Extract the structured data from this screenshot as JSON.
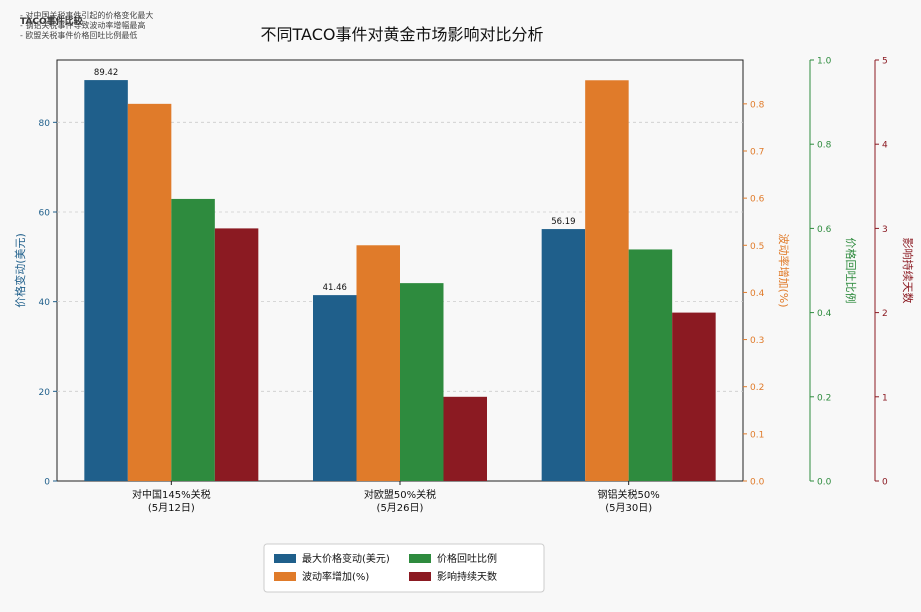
{
  "notes": {
    "title": "TACO事件比较",
    "lines": [
      "- 对中国关税事件引起的价格变化最大",
      "- 钢铝关税事件导致波动率增幅最高",
      "- 欧盟关税事件价格回吐比例最低"
    ]
  },
  "chart_data": {
    "type": "bar",
    "title": "不同TACO事件对黄金市场影响对比分析",
    "categories": [
      [
        "对中国145%关税",
        "(5月12日)"
      ],
      [
        "对欧盟50%关税",
        "(5月26日)"
      ],
      [
        "钢铝关税50%",
        "(5月30日)"
      ]
    ],
    "series": [
      {
        "name": "最大价格变动(美元)",
        "axis": "y1",
        "color": "#1f5f8b",
        "values": [
          89.42,
          41.46,
          56.19
        ],
        "labels": [
          "89.42",
          "41.46",
          "56.19"
        ]
      },
      {
        "name": "波动率增加(%)",
        "axis": "y2",
        "color": "#e07b2a",
        "values": [
          0.8,
          0.5,
          0.85
        ]
      },
      {
        "name": "价格回吐比例",
        "axis": "y3",
        "color": "#2e8b3e",
        "values": [
          0.67,
          0.47,
          0.55
        ]
      },
      {
        "name": "影响持续天数",
        "axis": "y4",
        "color": "#8b1a22",
        "values": [
          3,
          1,
          2
        ]
      }
    ],
    "axes": {
      "y1": {
        "label": "价格变动(美元)",
        "color": "#1f5f8b",
        "range": [
          0,
          93.9
        ],
        "ticks": [
          "0",
          "20",
          "40",
          "60",
          "80"
        ],
        "tickValues": [
          0,
          20,
          40,
          60,
          80
        ]
      },
      "y2": {
        "label": "波动率增加(%)",
        "color": "#e07b2a",
        "range": [
          0,
          0.893
        ],
        "ticks": [
          "0.0",
          "0.1",
          "0.2",
          "0.3",
          "0.4",
          "0.5",
          "0.6",
          "0.7",
          "0.8"
        ],
        "tickValues": [
          0,
          0.1,
          0.2,
          0.3,
          0.4,
          0.5,
          0.6,
          0.7,
          0.8
        ]
      },
      "y3": {
        "label": "价格回吐比例",
        "color": "#2e8b3e",
        "range": [
          0,
          1.0
        ],
        "ticks": [
          "0.0",
          "0.2",
          "0.4",
          "0.6",
          "0.8",
          "1.0"
        ],
        "tickValues": [
          0,
          0.2,
          0.4,
          0.6,
          0.8,
          1.0
        ]
      },
      "y4": {
        "label": "影响持续天数",
        "color": "#8b1a22",
        "range": [
          0,
          5
        ],
        "ticks": [
          "0",
          "1",
          "2",
          "3",
          "4",
          "5"
        ],
        "tickValues": [
          0,
          1,
          2,
          3,
          4,
          5
        ]
      }
    },
    "grid": true,
    "legend_position": "bottom-center"
  }
}
